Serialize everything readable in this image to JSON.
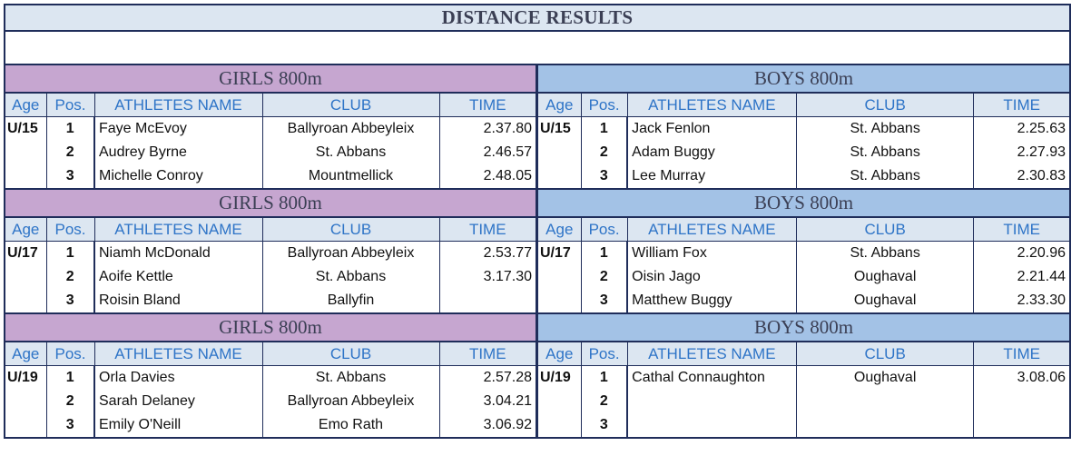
{
  "title": "DISTANCE RESULTS",
  "headers": {
    "age": "Age",
    "pos": "Pos.",
    "name": "ATHLETES NAME",
    "club": "CLUB",
    "time": "TIME"
  },
  "blocks": [
    {
      "girls": {
        "event": "GIRLS 800m",
        "age": "U/15",
        "rows": [
          {
            "pos": "1",
            "name": "Faye McEvoy",
            "club": "Ballyroan Abbeyleix",
            "time": "2.37.80"
          },
          {
            "pos": "2",
            "name": "Audrey Byrne",
            "club": "St. Abbans",
            "time": "2.46.57"
          },
          {
            "pos": "3",
            "name": "Michelle Conroy",
            "club": "Mountmellick",
            "time": "2.48.05"
          }
        ]
      },
      "boys": {
        "event": "BOYS 800m",
        "age": "U/15",
        "rows": [
          {
            "pos": "1",
            "name": "Jack Fenlon",
            "club": "St. Abbans",
            "time": "2.25.63"
          },
          {
            "pos": "2",
            "name": "Adam Buggy",
            "club": "St. Abbans",
            "time": "2.27.93"
          },
          {
            "pos": "3",
            "name": "Lee Murray",
            "club": "St. Abbans",
            "time": "2.30.83"
          }
        ]
      }
    },
    {
      "girls": {
        "event": "GIRLS 800m",
        "age": "U/17",
        "rows": [
          {
            "pos": "1",
            "name": "Niamh McDonald",
            "club": "Ballyroan Abbeyleix",
            "time": "2.53.77"
          },
          {
            "pos": "2",
            "name": "Aoife Kettle",
            "club": "St. Abbans",
            "time": "3.17.30"
          },
          {
            "pos": "3",
            "name": "Roisin Bland",
            "club": "Ballyfin",
            "time": ""
          }
        ]
      },
      "boys": {
        "event": "BOYS 800m",
        "age": "U/17",
        "rows": [
          {
            "pos": "1",
            "name": "William Fox",
            "club": "St. Abbans",
            "time": "2.20.96"
          },
          {
            "pos": "2",
            "name": "Oisin Jago",
            "club": "Oughaval",
            "time": "2.21.44"
          },
          {
            "pos": "3",
            "name": "Matthew Buggy",
            "club": "Oughaval",
            "time": "2.33.30"
          }
        ]
      }
    },
    {
      "girls": {
        "event": "GIRLS 800m",
        "age": "U/19",
        "rows": [
          {
            "pos": "1",
            "name": "Orla Davies",
            "club": "St. Abbans",
            "time": "2.57.28"
          },
          {
            "pos": "2",
            "name": "Sarah Delaney",
            "club": "Ballyroan Abbeyleix",
            "time": "3.04.21"
          },
          {
            "pos": "3",
            "name": "Emily O'Neill",
            "club": "Emo Rath",
            "time": "3.06.92"
          }
        ]
      },
      "boys": {
        "event": "BOYS 800m",
        "age": "U/19",
        "rows": [
          {
            "pos": "1",
            "name": "Cathal Connaughton",
            "club": "Oughaval",
            "time": "3.08.06"
          },
          {
            "pos": "2",
            "name": "",
            "club": "",
            "time": ""
          },
          {
            "pos": "3",
            "name": "",
            "club": "",
            "time": ""
          }
        ]
      }
    }
  ]
}
